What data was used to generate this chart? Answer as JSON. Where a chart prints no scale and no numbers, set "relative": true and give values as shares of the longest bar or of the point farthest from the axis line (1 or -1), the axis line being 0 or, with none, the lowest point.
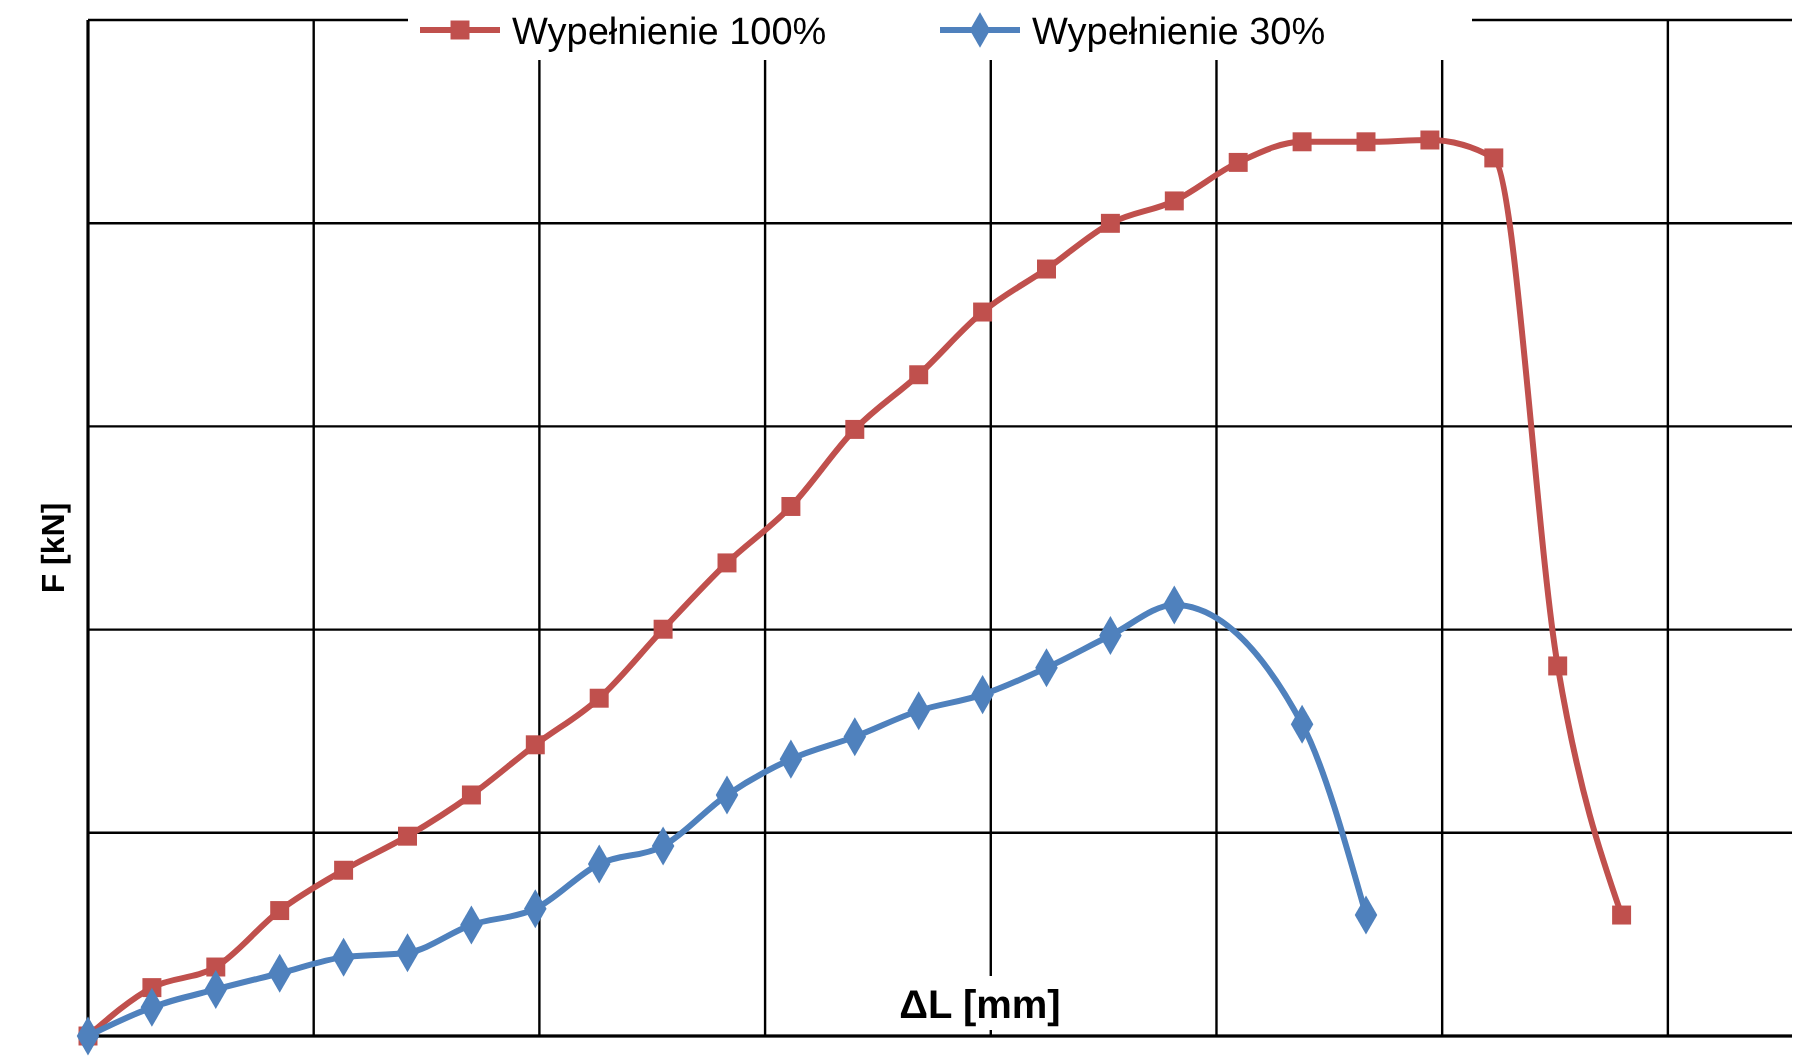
{
  "chart_data": {
    "type": "line",
    "relative": true,
    "xlabel": "ΔL [mm]",
    "ylabel": "F [kN]",
    "grid": true,
    "legend": "top",
    "line_style": "solid",
    "categories": [
      null,
      null,
      null,
      null,
      null,
      null,
      null,
      null,
      null,
      null,
      null,
      null,
      null,
      null,
      null,
      null,
      null,
      null,
      null,
      null,
      null,
      null,
      null,
      null,
      null
    ],
    "series": [
      {
        "name": "Wypełnienie 100%",
        "color": "#c0504d",
        "marker": "square",
        "values": [
          0,
          0.054,
          0.077,
          0.14,
          0.185,
          0.223,
          0.269,
          0.325,
          0.377,
          0.454,
          0.528,
          0.591,
          0.677,
          0.738,
          0.808,
          0.856,
          0.907,
          0.932,
          0.975,
          0.998,
          0.998,
          1,
          0.98,
          0.413,
          0.135
        ]
      },
      {
        "name": "Wypełnienie 30%",
        "color": "#4f81bd",
        "marker": "diamond",
        "values": [
          0,
          0.032,
          0.052,
          0.07,
          0.088,
          0.093,
          0.124,
          0.142,
          0.192,
          0.212,
          0.269,
          0.309,
          0.334,
          0.363,
          0.381,
          0.411,
          0.447,
          0.481,
          null,
          0.348,
          0.135,
          null,
          null,
          null,
          null
        ]
      }
    ]
  }
}
